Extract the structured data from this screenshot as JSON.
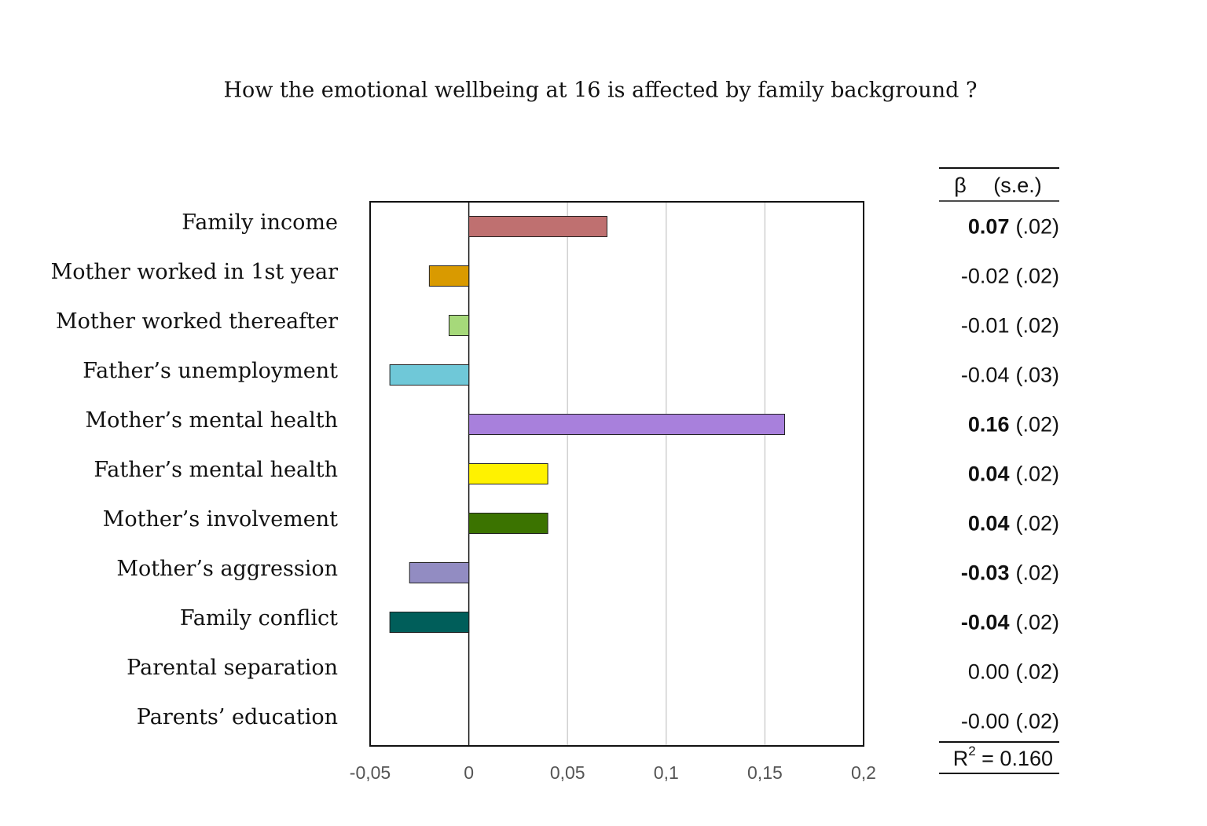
{
  "chart_data": {
    "type": "hbar",
    "title": "How the emotional wellbeing at 16 is affected by family background ?",
    "categories": [
      "Family income",
      "Mother worked in 1st year",
      "Mother worked thereafter",
      "Father’s unemployment",
      "Mother’s mental health",
      "Father’s mental health",
      "Mother’s involvement",
      "Mother’s aggression",
      "Family conflict",
      "Parental separation",
      "Parents’ education"
    ],
    "values": [
      0.07,
      -0.02,
      -0.01,
      -0.04,
      0.16,
      0.04,
      0.04,
      -0.03,
      -0.04,
      0,
      0
    ],
    "value_labels": [
      "0.07",
      "-0.02",
      "-0.01",
      "-0.04",
      "0.16",
      "0.04",
      "0.04",
      "-0.03",
      "-0.04",
      "0.00",
      "-0.00"
    ],
    "se_labels": [
      "(.02)",
      "(.02)",
      "(.02)",
      "(.03)",
      "(.02)",
      "(.02)",
      "(.02)",
      "(.02)",
      "(.02)",
      "(.02)",
      "(.02)"
    ],
    "bold": [
      true,
      false,
      false,
      false,
      true,
      true,
      true,
      true,
      true,
      false,
      false
    ],
    "colors": [
      "#bf7070",
      "#d99a00",
      "#a6d97a",
      "#6fc8d8",
      "#a880dc",
      "#fff200",
      "#3b7300",
      "#928cc2",
      "#005e5a",
      "#888888",
      "#888888"
    ],
    "table_header": [
      "β",
      "(s.e.)"
    ],
    "fit": {
      "symbol": "R",
      "power": "2",
      "text": " = 0.160"
    },
    "xlim": [
      -0.05,
      0.2
    ],
    "xticks": [
      {
        "value": -0.05,
        "label": "-0,05"
      },
      0,
      {
        "value": 0.05,
        "label": "0,05"
      },
      {
        "value": 0.1,
        "label": "0,1"
      },
      {
        "value": 0.15,
        "label": "0,15"
      },
      {
        "value": 0.2,
        "label": "0,2"
      }
    ],
    "grid": true
  }
}
